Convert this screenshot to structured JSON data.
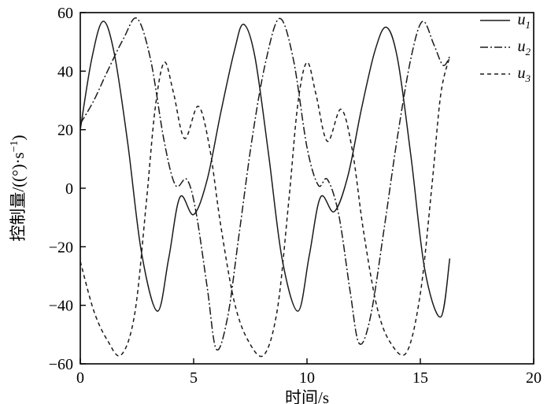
{
  "chart_data": {
    "type": "line",
    "title": "",
    "xlabel": "时间/s",
    "ylabel_main": "控制量/((°)·s",
    "ylabel_sup": "−1",
    "ylabel_close": ")",
    "xlim": [
      0,
      20
    ],
    "ylim": [
      -60,
      60
    ],
    "xtick_values": [
      0,
      5,
      10,
      15,
      20
    ],
    "xtick_labels": [
      "0",
      "5",
      "10",
      "15",
      "20"
    ],
    "ytick_values": [
      60,
      40,
      20,
      0,
      -20,
      -40,
      -60
    ],
    "ytick_labels": [
      "60",
      "40",
      "20",
      "0",
      "−20",
      "−40",
      "−60"
    ],
    "grid": false,
    "legend_position": "top-right",
    "axis_color": "#000000",
    "background_color": "#ffffff",
    "series": [
      {
        "name": "u1",
        "label_base": "u",
        "label_sub": "1",
        "style": "solid",
        "dash": [],
        "color": "#1a1a1a",
        "points": [
          [
            0,
            20
          ],
          [
            0.5,
            44
          ],
          [
            1.0,
            57
          ],
          [
            1.5,
            46
          ],
          [
            2.1,
            15
          ],
          [
            2.7,
            -22
          ],
          [
            3.4,
            -42
          ],
          [
            3.9,
            -24
          ],
          [
            4.4,
            -3
          ],
          [
            5.0,
            -9
          ],
          [
            5.6,
            3
          ],
          [
            6.2,
            26
          ],
          [
            6.8,
            47
          ],
          [
            7.2,
            56
          ],
          [
            7.7,
            45
          ],
          [
            8.3,
            12
          ],
          [
            8.9,
            -24
          ],
          [
            9.6,
            -42
          ],
          [
            10.1,
            -23
          ],
          [
            10.6,
            -3
          ],
          [
            11.2,
            -8
          ],
          [
            11.8,
            4
          ],
          [
            12.4,
            27
          ],
          [
            13.0,
            47
          ],
          [
            13.5,
            55
          ],
          [
            14.0,
            44
          ],
          [
            14.6,
            10
          ],
          [
            15.2,
            -28
          ],
          [
            15.9,
            -44
          ],
          [
            16.3,
            -24
          ]
        ]
      },
      {
        "name": "u2",
        "label_base": "u",
        "label_sub": "2",
        "style": "dash-dot",
        "dash": [
          10,
          3,
          2,
          3
        ],
        "color": "#1a1a1a",
        "points": [
          [
            0,
            22
          ],
          [
            0.6,
            30
          ],
          [
            1.2,
            40
          ],
          [
            1.9,
            51
          ],
          [
            2.5,
            58
          ],
          [
            3.1,
            44
          ],
          [
            3.7,
            16
          ],
          [
            4.2,
            1
          ],
          [
            4.7,
            3
          ],
          [
            5.1,
            -8
          ],
          [
            5.6,
            -34
          ],
          [
            6.0,
            -55
          ],
          [
            6.5,
            -44
          ],
          [
            7.0,
            -16
          ],
          [
            7.6,
            18
          ],
          [
            8.2,
            44
          ],
          [
            8.8,
            58
          ],
          [
            9.4,
            44
          ],
          [
            10.0,
            14
          ],
          [
            10.5,
            1
          ],
          [
            10.9,
            3
          ],
          [
            11.4,
            -9
          ],
          [
            11.9,
            -35
          ],
          [
            12.3,
            -53
          ],
          [
            12.8,
            -44
          ],
          [
            13.4,
            -14
          ],
          [
            14.0,
            18
          ],
          [
            14.6,
            45
          ],
          [
            15.1,
            57
          ],
          [
            15.6,
            49
          ],
          [
            16.0,
            42
          ],
          [
            16.3,
            45
          ]
        ]
      },
      {
        "name": "u3",
        "label_base": "u",
        "label_sub": "3",
        "style": "dashed",
        "dash": [
          5,
          4
        ],
        "color": "#1a1a1a",
        "points": [
          [
            0,
            -25
          ],
          [
            0.6,
            -42
          ],
          [
            1.2,
            -52
          ],
          [
            1.8,
            -57
          ],
          [
            2.4,
            -43
          ],
          [
            2.9,
            -6
          ],
          [
            3.3,
            27
          ],
          [
            3.7,
            43
          ],
          [
            4.1,
            33
          ],
          [
            4.6,
            17
          ],
          [
            5.2,
            28
          ],
          [
            5.7,
            14
          ],
          [
            6.2,
            -13
          ],
          [
            6.8,
            -39
          ],
          [
            7.4,
            -52
          ],
          [
            8.1,
            -57
          ],
          [
            8.7,
            -41
          ],
          [
            9.2,
            -4
          ],
          [
            9.6,
            29
          ],
          [
            10.0,
            43
          ],
          [
            10.4,
            32
          ],
          [
            10.9,
            16
          ],
          [
            11.5,
            27
          ],
          [
            12.0,
            13
          ],
          [
            12.5,
            -15
          ],
          [
            13.1,
            -41
          ],
          [
            13.7,
            -53
          ],
          [
            14.4,
            -56
          ],
          [
            15.0,
            -36
          ],
          [
            15.5,
            0
          ],
          [
            15.9,
            32
          ],
          [
            16.3,
            45
          ]
        ]
      }
    ]
  }
}
